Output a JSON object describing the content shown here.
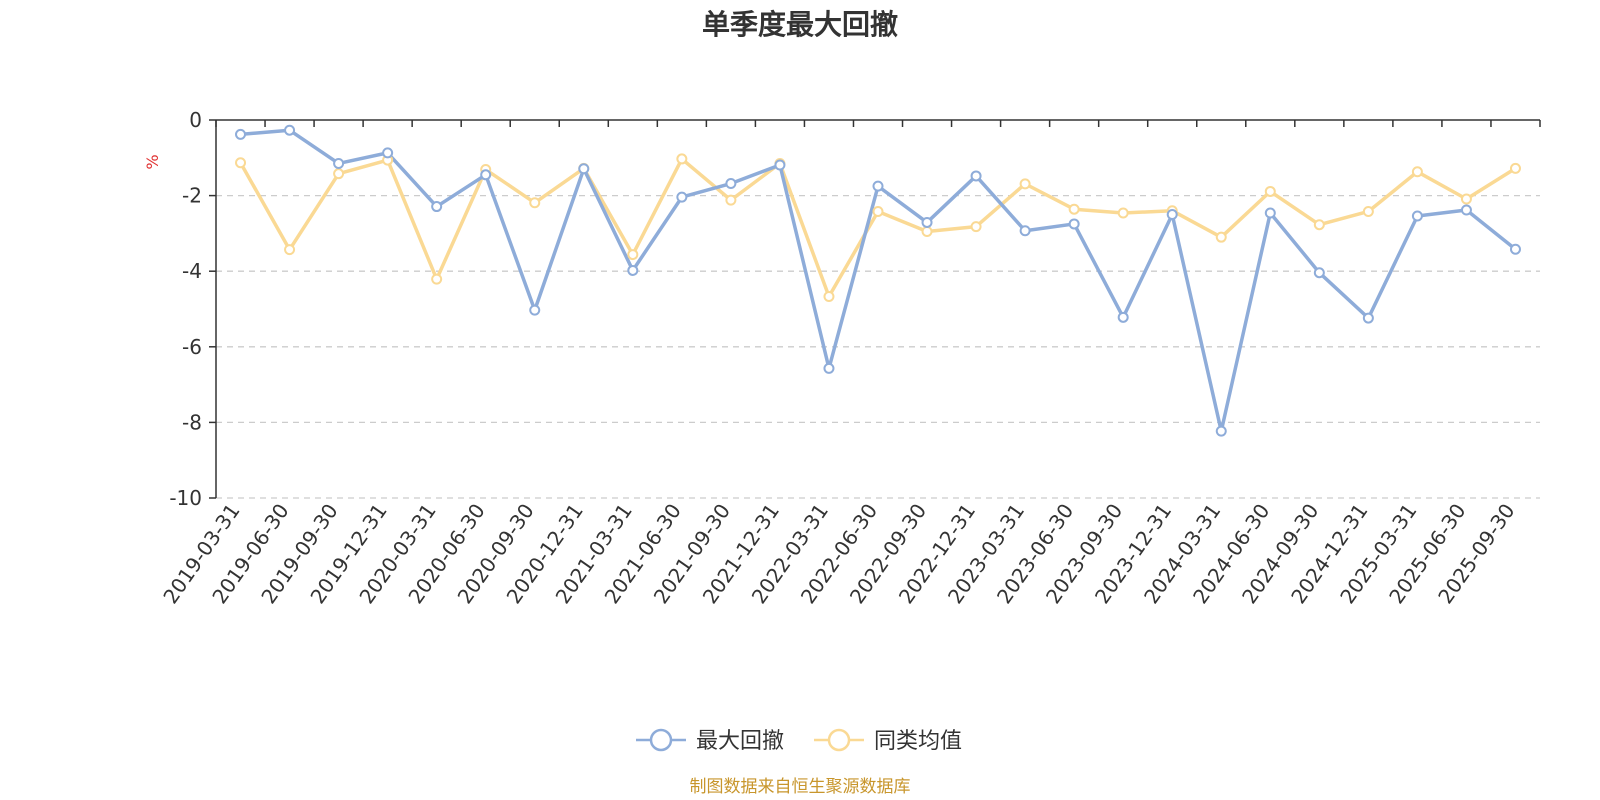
{
  "chart_data": {
    "type": "line",
    "title": "单季度最大回撤",
    "ylabel": "%",
    "xlabel": "",
    "ylim": [
      -10,
      0
    ],
    "yticks": [
      0,
      -2,
      -4,
      -6,
      -8,
      -10
    ],
    "ytick_labels": [
      "0",
      "-2",
      "-4",
      "-6",
      "-8",
      "-10"
    ],
    "grid": true,
    "legend_position": "bottom-center",
    "categories": [
      "2019-03-31",
      "2019-06-30",
      "2019-09-30",
      "2019-12-31",
      "2020-03-31",
      "2020-06-30",
      "2020-09-30",
      "2020-12-31",
      "2021-03-31",
      "2021-06-30",
      "2021-09-30",
      "2021-12-31",
      "2022-03-31",
      "2022-06-30",
      "2022-09-30",
      "2022-12-31",
      "2023-03-31",
      "2023-06-30",
      "2023-09-30",
      "2023-12-31",
      "2024-03-31",
      "2024-06-30",
      "2024-09-30",
      "2024-12-31",
      "2025-03-31",
      "2025-06-30",
      "2025-09-30"
    ],
    "series": [
      {
        "name": "最大回撤",
        "color": "#8eacd9",
        "values": [
          -0.38,
          -0.27,
          -1.15,
          -0.87,
          -2.29,
          -1.45,
          -5.03,
          -1.29,
          -3.98,
          -2.04,
          -1.68,
          -1.19,
          -6.57,
          -1.75,
          -2.71,
          -1.48,
          -2.93,
          -2.75,
          -5.22,
          -2.5,
          -8.23,
          -2.46,
          -4.04,
          -5.24,
          -2.54,
          -2.38,
          -3.42
        ]
      },
      {
        "name": "同类均值",
        "color": "#fad994",
        "values": [
          -1.13,
          -3.43,
          -1.42,
          -1.06,
          -4.21,
          -1.31,
          -2.19,
          -1.28,
          -3.56,
          -1.03,
          -2.12,
          -1.15,
          -4.67,
          -2.42,
          -2.95,
          -2.82,
          -1.69,
          -2.36,
          -2.46,
          -2.4,
          -3.1,
          -1.89,
          -2.77,
          -2.42,
          -1.37,
          -2.09,
          -1.28
        ]
      }
    ]
  },
  "footer": {
    "source": "制图数据来自恒生聚源数据库",
    "source_color": "#c8962c"
  },
  "style": {
    "unit_color": "#e03030",
    "axis_color": "#333333",
    "grid_color": "#cccccc"
  }
}
